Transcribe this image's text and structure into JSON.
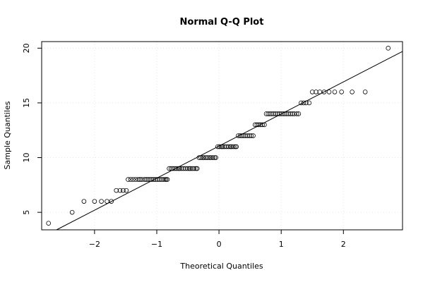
{
  "chart_data": {
    "type": "scatter",
    "title": "Normal Q-Q Plot",
    "xlabel": "Theoretical Quantiles",
    "ylabel": "Sample Quantiles",
    "xlim": [
      -2.85,
      2.95
    ],
    "ylim": [
      3.4,
      20.6
    ],
    "xticks": [
      -2,
      -1,
      0,
      1,
      2
    ],
    "xtick_labels": [
      "−2",
      "−1",
      "0",
      "1",
      "2"
    ],
    "yticks": [
      5,
      10,
      15,
      20
    ],
    "ytick_labels": [
      "5",
      "10",
      "15",
      "20"
    ],
    "grid": true,
    "reference_line": {
      "x1": -2.85,
      "y1": 2.7,
      "x2": 2.95,
      "y2": 19.7
    },
    "points": {
      "x": [
        -2.74,
        -2.36,
        -2.17,
        -2.0,
        -1.89,
        -1.8,
        -1.73,
        -1.65,
        -1.59,
        -1.54,
        -1.49,
        -1.46,
        -1.42,
        -1.38,
        -1.34,
        -1.3,
        -1.27,
        -1.24,
        -1.2,
        -1.17,
        -1.14,
        -1.11,
        -1.08,
        -1.05,
        -1.02,
        -0.99,
        -0.96,
        -0.93,
        -0.9,
        -0.87,
        -0.85,
        -0.83,
        -0.8,
        -0.77,
        -0.74,
        -0.71,
        -0.68,
        -0.65,
        -0.63,
        -0.6,
        -0.57,
        -0.54,
        -0.51,
        -0.48,
        -0.46,
        -0.43,
        -0.4,
        -0.37,
        -0.35,
        -0.32,
        -0.29,
        -0.26,
        -0.24,
        -0.21,
        -0.18,
        -0.15,
        -0.13,
        -0.1,
        -0.07,
        -0.05,
        -0.02,
        0.01,
        0.04,
        0.06,
        0.09,
        0.12,
        0.15,
        0.18,
        0.2,
        0.23,
        0.26,
        0.28,
        0.31,
        0.34,
        0.37,
        0.4,
        0.43,
        0.46,
        0.49,
        0.52,
        0.55,
        0.58,
        0.61,
        0.64,
        0.67,
        0.7,
        0.73,
        0.76,
        0.79,
        0.82,
        0.85,
        0.88,
        0.91,
        0.94,
        0.97,
        1.0,
        1.03,
        1.06,
        1.09,
        1.12,
        1.15,
        1.18,
        1.21,
        1.25,
        1.28,
        1.32,
        1.36,
        1.4,
        1.45,
        1.5,
        1.56,
        1.62,
        1.69,
        1.77,
        1.86,
        1.97,
        2.14,
        2.35,
        2.72
      ],
      "y": [
        4,
        5,
        6,
        6,
        6,
        6,
        6,
        7,
        7,
        7,
        7,
        8,
        8,
        8,
        8,
        8,
        8,
        8,
        8,
        8,
        8,
        8,
        8,
        8,
        8,
        8,
        8,
        8,
        8,
        8,
        8,
        8,
        9,
        9,
        9,
        9,
        9,
        9,
        9,
        9,
        9,
        9,
        9,
        9,
        9,
        9,
        9,
        9,
        9,
        10,
        10,
        10,
        10,
        10,
        10,
        10,
        10,
        10,
        10,
        10,
        11,
        11,
        11,
        11,
        11,
        11,
        11,
        11,
        11,
        11,
        11,
        11,
        12,
        12,
        12,
        12,
        12,
        12,
        12,
        12,
        12,
        13,
        13,
        13,
        13,
        13,
        13,
        14,
        14,
        14,
        14,
        14,
        14,
        14,
        14,
        14,
        14,
        14,
        14,
        14,
        14,
        14,
        14,
        14,
        14,
        15,
        15,
        15,
        15,
        16,
        16,
        16,
        16,
        16,
        16,
        16,
        16,
        16,
        20
      ]
    }
  }
}
